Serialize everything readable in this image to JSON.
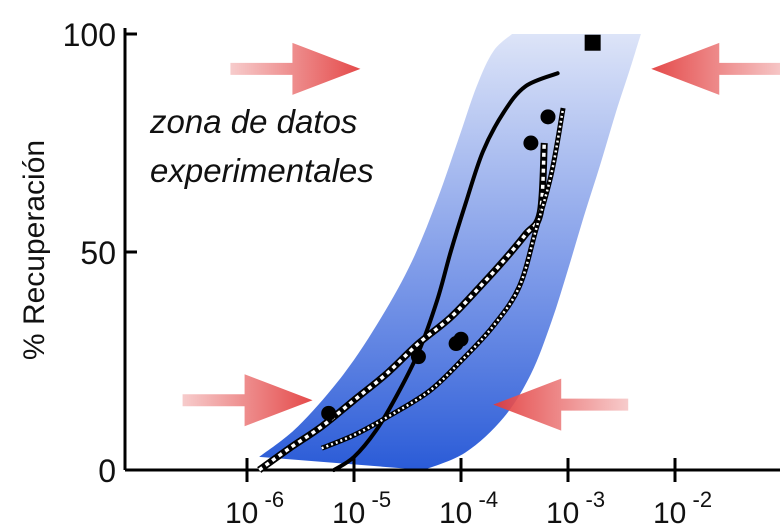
{
  "chart_data": {
    "type": "line",
    "title": "",
    "xlabel": "",
    "ylabel": "% Recuperación",
    "xscale": "log",
    "xlim": [
      1e-07,
      0.1
    ],
    "ylim": [
      0,
      100
    ],
    "x_ticks": [
      1e-06,
      1e-05,
      0.0001,
      0.001,
      0.01
    ],
    "x_tick_labels": [
      {
        "base": "10",
        "exp": "-6"
      },
      {
        "base": "10",
        "exp": "-5"
      },
      {
        "base": "10",
        "exp": "-4"
      },
      {
        "base": "10",
        "exp": "-3"
      },
      {
        "base": "10",
        "exp": "-2"
      }
    ],
    "y_ticks": [
      0,
      50,
      100
    ],
    "y_tick_labels": [
      "0",
      "50",
      "100"
    ],
    "grid": false,
    "annotation": {
      "line1": "zona de datos",
      "line2": "experimentales"
    },
    "band": {
      "upper": [
        [
          1.3e-06,
          3
        ],
        [
          3e-06,
          10
        ],
        [
          8e-06,
          22
        ],
        [
          1.8e-05,
          35
        ],
        [
          3.5e-05,
          48
        ],
        [
          6e-05,
          62
        ],
        [
          9.5e-05,
          76
        ],
        [
          0.00014,
          88
        ],
        [
          0.0002,
          96
        ],
        [
          0.0003,
          100
        ]
      ],
      "lower": [
        [
          4.5e-05,
          0
        ],
        [
          0.00011,
          4
        ],
        [
          0.00025,
          12
        ],
        [
          0.00045,
          22
        ],
        [
          0.0007,
          34
        ],
        [
          0.001,
          46
        ],
        [
          0.0014,
          58
        ],
        [
          0.002,
          70
        ],
        [
          0.0028,
          82
        ],
        [
          0.0038,
          92
        ],
        [
          0.0048,
          100
        ]
      ],
      "color": "#2a5bd7"
    },
    "series": [
      {
        "style": "solid",
        "color": "#000000",
        "values": [
          [
            6.5e-06,
            0
          ],
          [
            1e-05,
            3
          ],
          [
            1.6e-05,
            9
          ],
          [
            2.5e-05,
            17
          ],
          [
            4e-05,
            27
          ],
          [
            6e-05,
            39
          ],
          [
            8e-05,
            50
          ],
          [
            0.00011,
            61
          ],
          [
            0.00016,
            73
          ],
          [
            0.00025,
            82
          ],
          [
            0.0004,
            88
          ],
          [
            0.0008,
            91
          ]
        ]
      },
      {
        "style": "checker",
        "color": "#000000",
        "values": [
          [
            1.3e-06,
            0
          ],
          [
            2.5e-06,
            5
          ],
          [
            5e-06,
            10
          ],
          [
            1e-05,
            16
          ],
          [
            2e-05,
            22
          ],
          [
            4e-05,
            29
          ],
          [
            8e-05,
            35
          ],
          [
            0.00015,
            42
          ],
          [
            0.00025,
            48
          ],
          [
            0.0004,
            54
          ],
          [
            0.00055,
            59
          ],
          [
            0.0006,
            75
          ]
        ]
      },
      {
        "style": "dotted",
        "color": "#000000",
        "values": [
          [
            5e-06,
            5
          ],
          [
            1e-05,
            8
          ],
          [
            2e-05,
            12
          ],
          [
            5e-05,
            18
          ],
          [
            0.0001,
            25
          ],
          [
            0.0002,
            33
          ],
          [
            0.00035,
            42
          ],
          [
            0.0005,
            55
          ],
          [
            0.0007,
            68
          ],
          [
            0.0009,
            83
          ]
        ]
      }
    ],
    "points": [
      {
        "x": 5.8e-06,
        "y": 13,
        "marker": "circle"
      },
      {
        "x": 4e-05,
        "y": 26,
        "marker": "circle"
      },
      {
        "x": 9e-05,
        "y": 29,
        "marker": "circle"
      },
      {
        "x": 0.0001,
        "y": 30,
        "marker": "circle"
      },
      {
        "x": 0.00045,
        "y": 75,
        "marker": "circle"
      },
      {
        "x": 0.00065,
        "y": 81,
        "marker": "circle"
      },
      {
        "x": 0.0017,
        "y": 98,
        "marker": "square"
      }
    ],
    "arrows": [
      {
        "x": 7e-07,
        "y": 92,
        "direction": "right"
      },
      {
        "x": 0.006,
        "y": 92,
        "direction": "left"
      },
      {
        "x": 2.5e-07,
        "y": 16,
        "direction": "right"
      },
      {
        "x": 0.0002,
        "y": 15,
        "direction": "left"
      }
    ]
  }
}
